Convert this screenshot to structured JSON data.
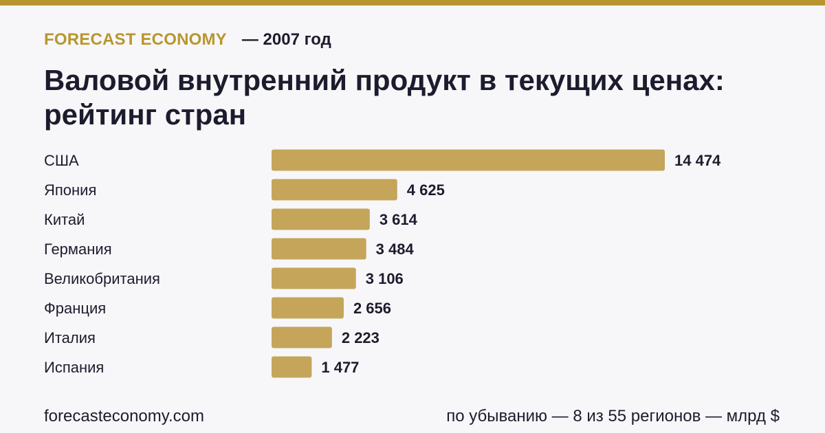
{
  "header": {
    "brand": "FORECAST ECONOMY",
    "year": "— 2007 год"
  },
  "title": "Валовой внутренний продукт в текущих ценах: рейтинг стран",
  "footer": {
    "site": "forecasteconomy.com",
    "note": "по убыванию — 8 из 55 регионов — млрд $"
  },
  "colors": {
    "accent": "#b8962e",
    "bar": "#c4a55a",
    "text": "#1c1c2e",
    "background": "#f7f7f9"
  },
  "chart_data": {
    "type": "bar",
    "orientation": "horizontal",
    "categories": [
      "США",
      "Япония",
      "Китай",
      "Германия",
      "Великобритания",
      "Франция",
      "Италия",
      "Испания"
    ],
    "values": [
      14474,
      4625,
      3614,
      3484,
      3106,
      2656,
      2223,
      1477
    ],
    "value_labels": [
      "14 474",
      "4 625",
      "3 614",
      "3 484",
      "3 106",
      "2 656",
      "2 223",
      "1 477"
    ],
    "xlim": [
      0,
      14474
    ],
    "grid": false,
    "legend": "none"
  }
}
